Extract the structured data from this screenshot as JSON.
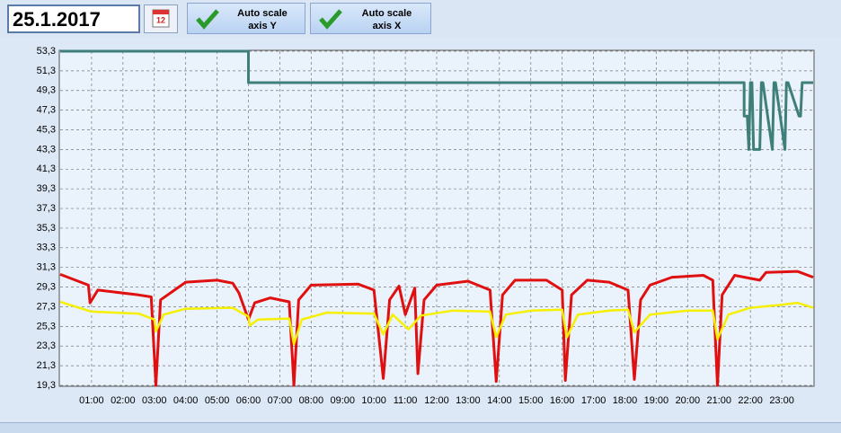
{
  "toolbar": {
    "date": "25.1.2017",
    "buttons": [
      {
        "label": [
          "Auto scale",
          "axis Y"
        ]
      },
      {
        "label": [
          "Auto scale",
          "axis X"
        ]
      }
    ]
  },
  "chart_data": {
    "type": "line",
    "grid": true,
    "xlim": [
      0,
      24
    ],
    "xticks": [
      {
        "value": 1,
        "label": "01:00"
      },
      {
        "value": 2,
        "label": "02:00"
      },
      {
        "value": 3,
        "label": "03:00"
      },
      {
        "value": 4,
        "label": "04:00"
      },
      {
        "value": 5,
        "label": "05:00"
      },
      {
        "value": 6,
        "label": "06:00"
      },
      {
        "value": 7,
        "label": "07:00"
      },
      {
        "value": 8,
        "label": "08:00"
      },
      {
        "value": 9,
        "label": "09:00"
      },
      {
        "value": 10,
        "label": "10:00"
      },
      {
        "value": 11,
        "label": "11:00"
      },
      {
        "value": 12,
        "label": "12:00"
      },
      {
        "value": 13,
        "label": "13:00"
      },
      {
        "value": 14,
        "label": "14:00"
      },
      {
        "value": 15,
        "label": "15:00"
      },
      {
        "value": 16,
        "label": "16:00"
      },
      {
        "value": 17,
        "label": "17:00"
      },
      {
        "value": 18,
        "label": "18:00"
      },
      {
        "value": 19,
        "label": "19:00"
      },
      {
        "value": 20,
        "label": "20:00"
      },
      {
        "value": 21,
        "label": "21:00"
      },
      {
        "value": 22,
        "label": "22:00"
      },
      {
        "value": 23,
        "label": "23:00"
      }
    ],
    "ylim": [
      19.3,
      53.3
    ],
    "yticks": [
      {
        "value": 19.3,
        "label": "19,3"
      },
      {
        "value": 21.3,
        "label": "21,3"
      },
      {
        "value": 23.3,
        "label": "23,3"
      },
      {
        "value": 25.3,
        "label": "25,3"
      },
      {
        "value": 27.3,
        "label": "27,3"
      },
      {
        "value": 29.3,
        "label": "29,3"
      },
      {
        "value": 31.3,
        "label": "31,3"
      },
      {
        "value": 33.3,
        "label": "33,3"
      },
      {
        "value": 35.3,
        "label": "35,3"
      },
      {
        "value": 37.3,
        "label": "37,3"
      },
      {
        "value": 39.3,
        "label": "39,3"
      },
      {
        "value": 41.3,
        "label": "41,3"
      },
      {
        "value": 43.3,
        "label": "43,3"
      },
      {
        "value": 45.3,
        "label": "45,3"
      },
      {
        "value": 47.3,
        "label": "47,3"
      },
      {
        "value": 49.3,
        "label": "49,3"
      },
      {
        "value": 51.3,
        "label": "51,3"
      },
      {
        "value": 53.3,
        "label": "53,3"
      }
    ],
    "series": [
      {
        "color": "#3e7f7a",
        "x": [
          0,
          6.0,
          6.0,
          21.8,
          21.8,
          21.9,
          21.95,
          22.0,
          22.05,
          22.1,
          22.3,
          22.35,
          22.4,
          22.7,
          22.75,
          22.8,
          23.1,
          23.15,
          23.2,
          23.55,
          23.6,
          23.65,
          24
        ],
        "values": [
          53.3,
          53.3,
          50.1,
          50.1,
          46.7,
          46.7,
          43.3,
          50.1,
          50.1,
          43.3,
          43.3,
          50.1,
          50.1,
          43.3,
          50.1,
          50.1,
          43.3,
          50.1,
          50.1,
          46.7,
          46.7,
          50.1,
          50.1
        ]
      },
      {
        "color": "#e01010",
        "x": [
          0,
          0.9,
          0.95,
          1.2,
          2.5,
          2.9,
          3.05,
          3.2,
          4,
          5,
          5.5,
          5.7,
          6.0,
          6.2,
          6.7,
          7.3,
          7.45,
          7.6,
          8,
          9.5,
          10,
          10.3,
          10.5,
          10.8,
          11.0,
          11.3,
          11.4,
          11.6,
          12,
          13,
          13.7,
          13.9,
          14.1,
          14.5,
          15.5,
          16.0,
          16.1,
          16.3,
          16.8,
          17.5,
          18.1,
          18.3,
          18.5,
          18.8,
          19.5,
          20.5,
          20.8,
          20.95,
          21.1,
          21.5,
          22.3,
          22.5,
          23.5,
          24
        ],
        "values": [
          30.6,
          29.5,
          27.7,
          29.0,
          28.5,
          28.3,
          19.3,
          28.0,
          29.8,
          30.0,
          29.7,
          28.7,
          26.0,
          27.7,
          28.2,
          27.8,
          19.3,
          28.0,
          29.5,
          29.6,
          29.0,
          20.0,
          28.0,
          29.4,
          26.5,
          29.2,
          20.5,
          28.0,
          29.5,
          29.9,
          29.0,
          19.7,
          28.5,
          30.0,
          30.0,
          29.0,
          19.8,
          28.5,
          30.0,
          29.8,
          29.0,
          19.9,
          28.0,
          29.5,
          30.3,
          30.5,
          30.0,
          19.3,
          28.5,
          30.5,
          30.0,
          30.8,
          30.9,
          30.3
        ]
      },
      {
        "color": "#f5f000",
        "x": [
          0,
          1,
          2.5,
          3,
          3.05,
          3.3,
          4,
          5.5,
          6.0,
          6.05,
          6.3,
          7.3,
          7.45,
          7.7,
          8.5,
          10,
          10.3,
          10.6,
          11.1,
          11.5,
          12.5,
          13.7,
          13.9,
          14.2,
          15,
          16,
          16.15,
          16.5,
          17.5,
          18.1,
          18.3,
          18.8,
          20,
          20.8,
          20.95,
          21.3,
          22,
          23,
          23.5,
          24
        ],
        "values": [
          27.8,
          26.8,
          26.6,
          26.0,
          24.8,
          26.5,
          27.1,
          27.2,
          26.3,
          25.4,
          26.0,
          26.1,
          23.5,
          26.0,
          26.7,
          26.6,
          24.5,
          26.5,
          25.0,
          26.4,
          26.9,
          26.8,
          24.2,
          26.5,
          26.9,
          27.0,
          24.2,
          26.5,
          26.9,
          27.0,
          24.7,
          26.5,
          26.9,
          26.9,
          24.0,
          26.5,
          27.2,
          27.5,
          27.7,
          27.2
        ]
      }
    ]
  }
}
